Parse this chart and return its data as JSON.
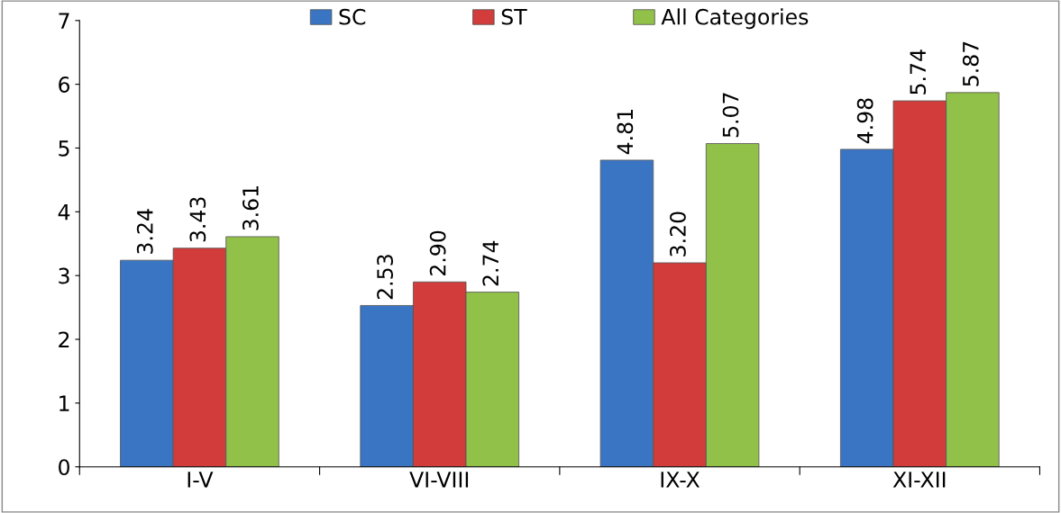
{
  "chart_data": {
    "type": "bar",
    "categories": [
      "I-V",
      "VI-VIII",
      "IX-X",
      "XI-XII"
    ],
    "series": [
      {
        "name": "SC",
        "color": "#3a75c4",
        "values": [
          3.24,
          2.53,
          4.81,
          4.98
        ],
        "value_labels": [
          "3.24",
          "2.53",
          "4.81",
          "4.98"
        ]
      },
      {
        "name": "ST",
        "color": "#d23c3a",
        "values": [
          3.43,
          2.9,
          3.2,
          5.74
        ],
        "value_labels": [
          "3.43",
          "2.90",
          "3.20",
          "5.74"
        ]
      },
      {
        "name": "All Categories",
        "color": "#92c14a",
        "values": [
          3.61,
          2.74,
          5.07,
          5.87
        ],
        "value_labels": [
          "3.61",
          "2.74",
          "5.07",
          "5.87"
        ]
      }
    ],
    "ylim": [
      0,
      7
    ],
    "yticks": [
      0,
      1,
      2,
      3,
      4,
      5,
      6,
      7
    ],
    "grid": false,
    "legend": "top"
  }
}
